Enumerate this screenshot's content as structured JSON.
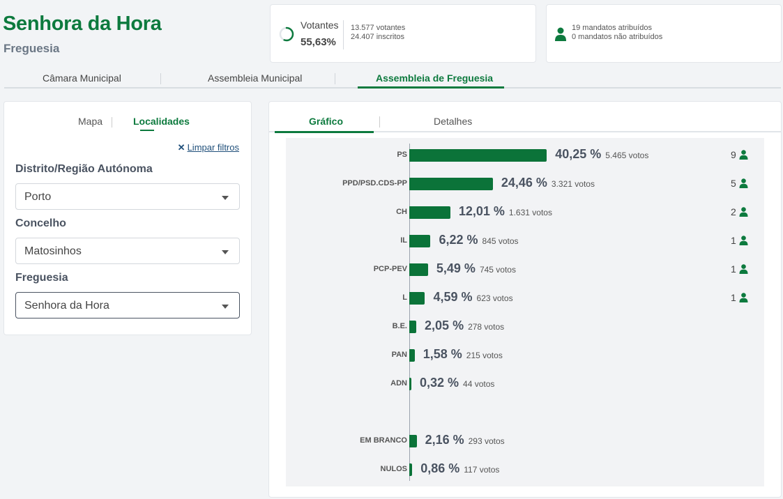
{
  "header": {
    "title": "Senhora da Hora",
    "subtitle": "Freguesia"
  },
  "votes_card": {
    "label": "Votantes",
    "percent": "55,63%",
    "voters": "13.577 votantes",
    "registered": "24.407 inscritos",
    "ring_fill_fraction": 0.5563,
    "icon": "progress-ring-icon"
  },
  "seats_card": {
    "assigned": "19 mandatos atribuídos",
    "unassigned": "0 mandatos não atribuídos",
    "icon": "person-icon"
  },
  "top_tabs": [
    {
      "label": "Câmara Municipal"
    },
    {
      "label": "Assembleia Municipal"
    },
    {
      "label": "Assembleia de Freguesia"
    }
  ],
  "filters": {
    "tabs": [
      {
        "label": "Mapa"
      },
      {
        "label": "Localidades"
      }
    ],
    "clear_label": "Limpar filtros",
    "district": {
      "label": "Distrito/Região Autónoma",
      "value": "Porto"
    },
    "council": {
      "label": "Concelho",
      "value": "Matosinhos"
    },
    "parish": {
      "label": "Freguesia",
      "value": "Senhora da Hora"
    }
  },
  "chart_tabs": [
    {
      "label": "Gráfico"
    },
    {
      "label": "Detalhes"
    }
  ],
  "colors": {
    "brand_green": "#0d7a3e",
    "bar_green": "#0b7339",
    "text_gray": "#4a5361"
  },
  "chart_data": {
    "type": "bar",
    "orientation": "horizontal",
    "categories": [
      "PS",
      "PPD/PSD.CDS-PP",
      "CH",
      "IL",
      "PCP-PEV",
      "L",
      "B.E.",
      "PAN",
      "ADN",
      "EM BRANCO",
      "NULOS"
    ],
    "values": [
      40.25,
      24.46,
      12.01,
      6.22,
      5.49,
      4.59,
      2.05,
      1.58,
      0.32,
      2.16,
      0.86
    ],
    "value_labels": [
      "40,25 %",
      "24,46 %",
      "12,01 %",
      "6,22 %",
      "5,49 %",
      "4,59 %",
      "2,05 %",
      "1,58 %",
      "0,32 %",
      "2,16 %",
      "0,86 %"
    ],
    "votes": [
      "5.465 votos",
      "3.321 votos",
      "1.631 votos",
      "845 votos",
      "745 votos",
      "623 votos",
      "278 votos",
      "215 votos",
      "44 votos",
      "293 votos",
      "117 votos"
    ],
    "seats": [
      "9",
      "5",
      "2",
      "1",
      "1",
      "1",
      "",
      "",
      "",
      "",
      ""
    ],
    "xlim": [
      0,
      100
    ]
  }
}
